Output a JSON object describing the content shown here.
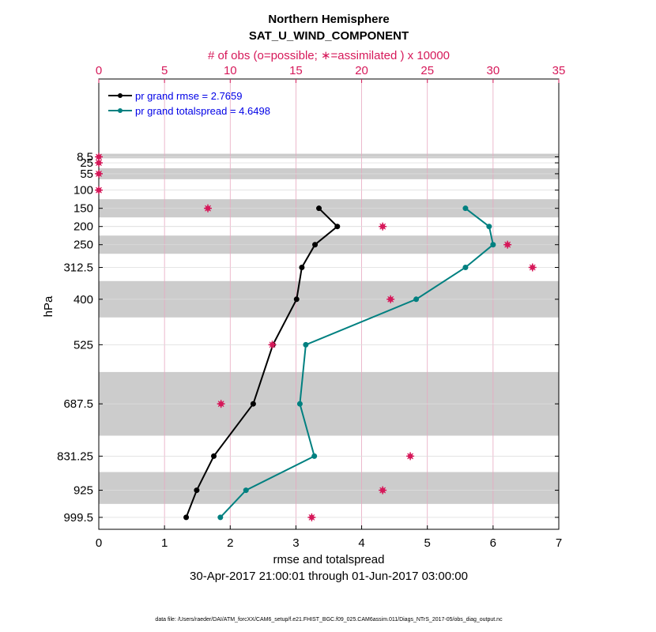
{
  "chart_data": {
    "type": "line",
    "title": "Northern Hemisphere",
    "subtitle": "SAT_U_WIND_COMPONENT",
    "top_axis_label": "# of obs (o=possible; ∗=assimilated ) x 10000",
    "top_ticks": [
      "0",
      "5",
      "10",
      "15",
      "20",
      "25",
      "30",
      "35"
    ],
    "top_range": [
      0,
      35
    ],
    "xlabel": "rmse and totalspread",
    "x_ticks": [
      "0",
      "1",
      "2",
      "3",
      "4",
      "5",
      "6",
      "7"
    ],
    "xlim": [
      0,
      7
    ],
    "ylabel": "hPa",
    "levels": [
      "8.5",
      "25",
      "55",
      "100",
      "150",
      "200",
      "250",
      "312.5",
      "400",
      "525",
      "687.5",
      "831.25",
      "925",
      "999.5"
    ],
    "level_values": [
      8.5,
      25,
      55,
      100,
      150,
      200,
      250,
      312.5,
      400,
      525,
      687.5,
      831.25,
      925,
      999.5
    ],
    "shaded_bands": [
      [
        0,
        12.5
      ],
      [
        40,
        70
      ],
      [
        125,
        175
      ],
      [
        225,
        275
      ],
      [
        350,
        450
      ],
      [
        600,
        775
      ],
      [
        875,
        962.5
      ]
    ],
    "date_range": "30-Apr-2017 21:00:01 through 01-Jun-2017 03:00:00",
    "data_file": "data file: /Users/raeder/DAI/ATM_forcXX/CAM6_setup/f.e21.FHIST_BGC.f09_025.CAM6assim.011/Diags_NTrS_2017-05/obs_diag_output.nc",
    "series": [
      {
        "name": "pr grand rmse = 2.7659",
        "color": "#000000",
        "levels": [
          150,
          200,
          250,
          312.5,
          400,
          525,
          687.5,
          831.25,
          925,
          999.5
        ],
        "values": [
          3.35,
          3.63,
          3.29,
          3.09,
          3.01,
          2.65,
          2.35,
          1.75,
          1.49,
          1.33
        ]
      },
      {
        "name": "pr grand totalspread = 4.6498",
        "color": "#008080",
        "levels": [
          150,
          200,
          250,
          312.5,
          400,
          525,
          687.5,
          831.25,
          925,
          999.5
        ],
        "values": [
          5.58,
          5.94,
          6.0,
          5.58,
          4.83,
          3.15,
          3.06,
          3.28,
          2.24,
          1.85
        ]
      }
    ],
    "obs_counts": {
      "name": "# of obs (x 10000)",
      "color": "#d6195a",
      "levels": [
        8.5,
        25,
        55,
        100,
        150,
        200,
        250,
        312.5,
        400,
        525,
        687.5,
        831.25,
        925,
        999.5
      ],
      "values": [
        0.0,
        0.0,
        0.0,
        0.0,
        8.3,
        21.6,
        31.1,
        33.0,
        22.2,
        13.2,
        9.3,
        23.7,
        21.6,
        16.2
      ]
    }
  }
}
